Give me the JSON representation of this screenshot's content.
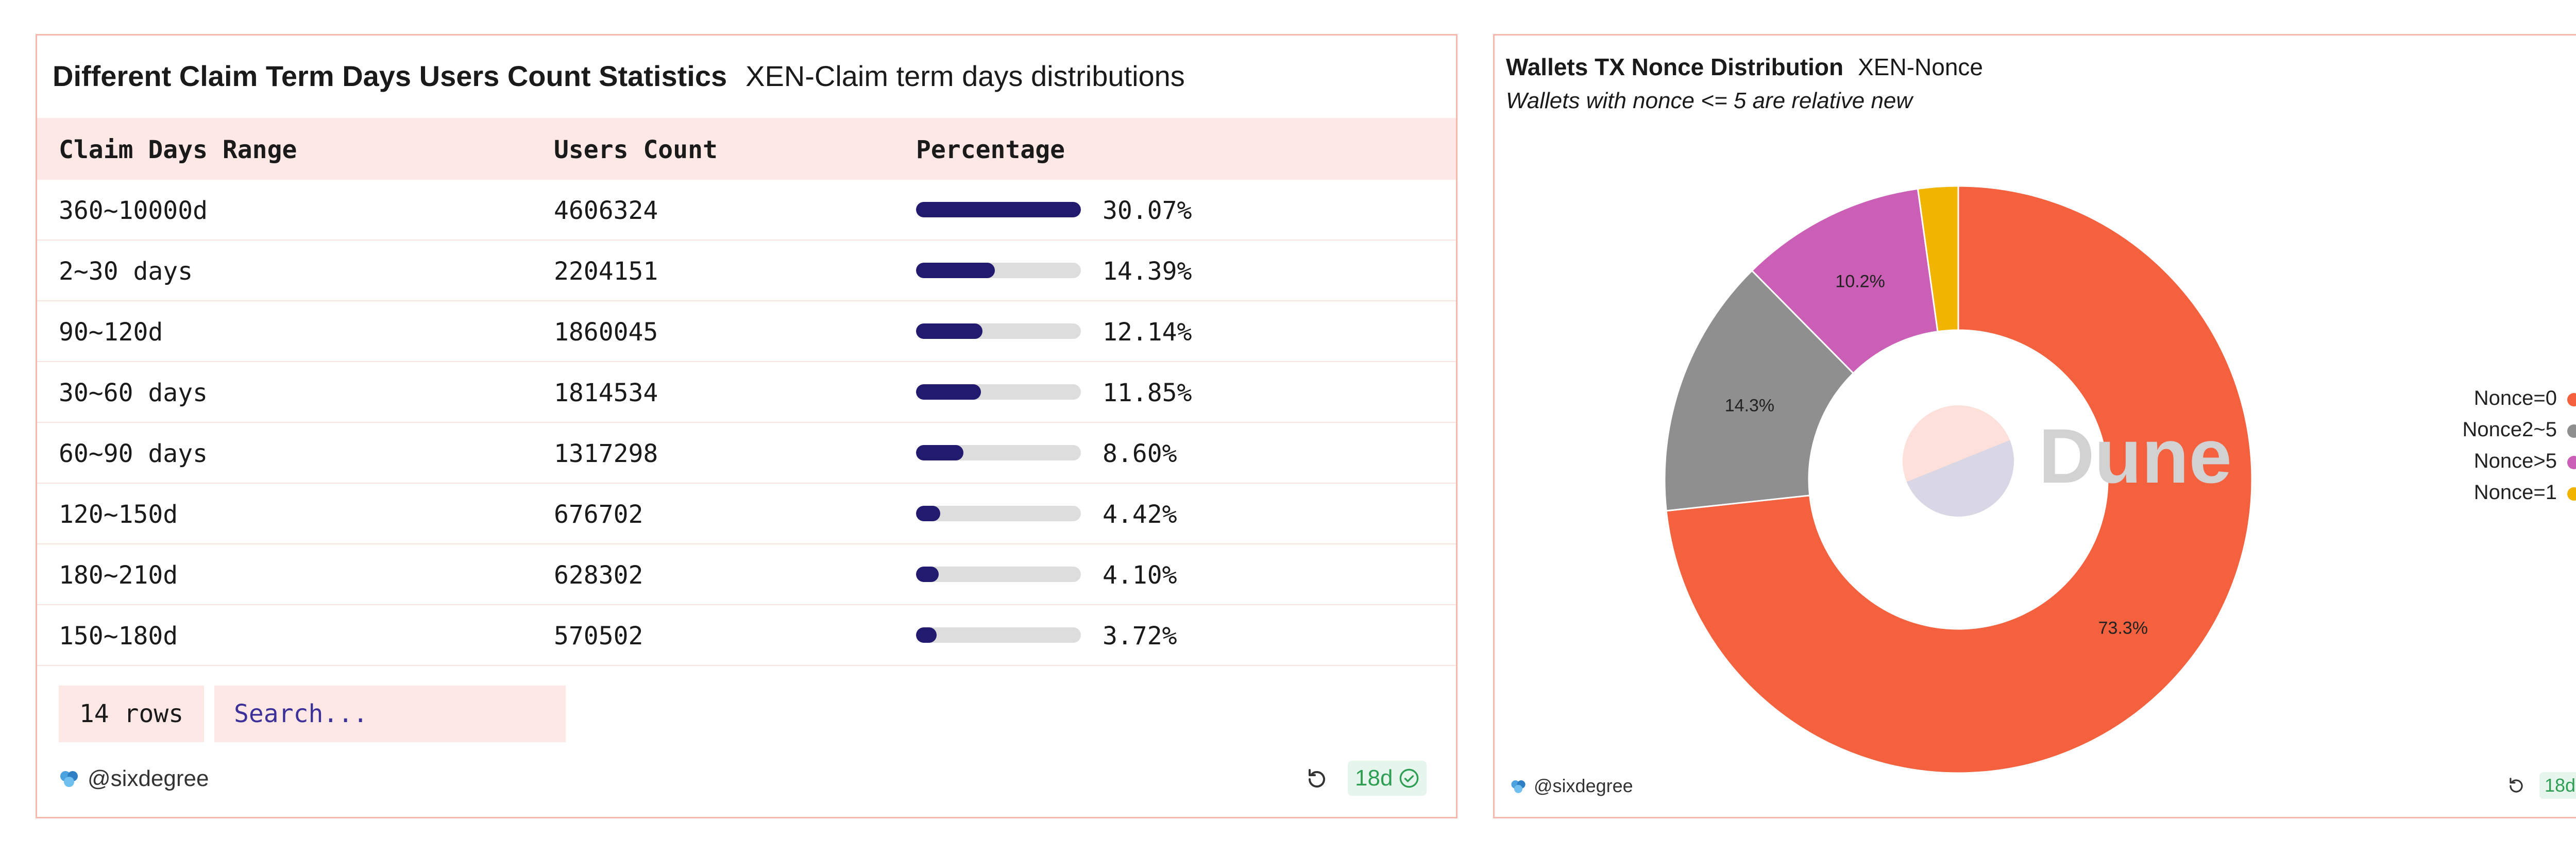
{
  "table_panel": {
    "title": "Different Claim Term Days Users Count Statistics",
    "subtitle": "XEN-Claim term days distributions",
    "columns": [
      "Claim Days Range",
      "Users Count",
      "Percentage"
    ],
    "rows": [
      {
        "range": "360~10000d",
        "users": "4606324",
        "pct": "30.07%",
        "share": 30.07
      },
      {
        "range": "2~30 days",
        "users": "2204151",
        "pct": "14.39%",
        "share": 14.39
      },
      {
        "range": "90~120d",
        "users": "1860045",
        "pct": "12.14%",
        "share": 12.14
      },
      {
        "range": "30~60 days",
        "users": "1814534",
        "pct": "11.85%",
        "share": 11.85
      },
      {
        "range": "60~90 days",
        "users": "1317298",
        "pct": "8.60%",
        "share": 8.6
      },
      {
        "range": "120~150d",
        "users": "676702",
        "pct": "4.42%",
        "share": 4.42
      },
      {
        "range": "180~210d",
        "users": "628302",
        "pct": "4.10%",
        "share": 4.1
      },
      {
        "range": "150~180d",
        "users": "570502",
        "pct": "3.72%",
        "share": 3.72
      }
    ],
    "bar_max_share": 30.07,
    "row_count": "14 rows",
    "search_placeholder": "Search...",
    "author": "@sixdegree",
    "age": "18d"
  },
  "donut_panel": {
    "title": "Wallets TX Nonce Distribution",
    "subtitle": "XEN-Nonce",
    "description": "Wallets with nonce <= 5 are relative new",
    "watermark": "Dune",
    "author": "@sixdegree",
    "age": "18d"
  },
  "chart_data": {
    "type": "pie",
    "donut": true,
    "series": [
      {
        "name": "Nonce=0",
        "value": 73.3,
        "label": "73.3%",
        "color": "#f4613f"
      },
      {
        "name": "Nonce2~5",
        "value": 14.3,
        "label": "14.3%",
        "color": "#8f8f8f"
      },
      {
        "name": "Nonce>5",
        "value": 10.2,
        "label": "10.2%",
        "color": "#cb5fb6"
      },
      {
        "name": "Nonce=1",
        "value": 2.2,
        "label": "",
        "color": "#f1b500"
      }
    ],
    "legend": "right"
  },
  "colors": {
    "border": "#f7b8ab",
    "header_bg": "#fde8e6",
    "bar": "#211a6e",
    "bar_track": "#dddddd",
    "badge_green": "#2f9e55"
  },
  "icons": {
    "author": "author-logo-icon",
    "refresh": "refresh-icon",
    "check": "check-circle-icon"
  }
}
